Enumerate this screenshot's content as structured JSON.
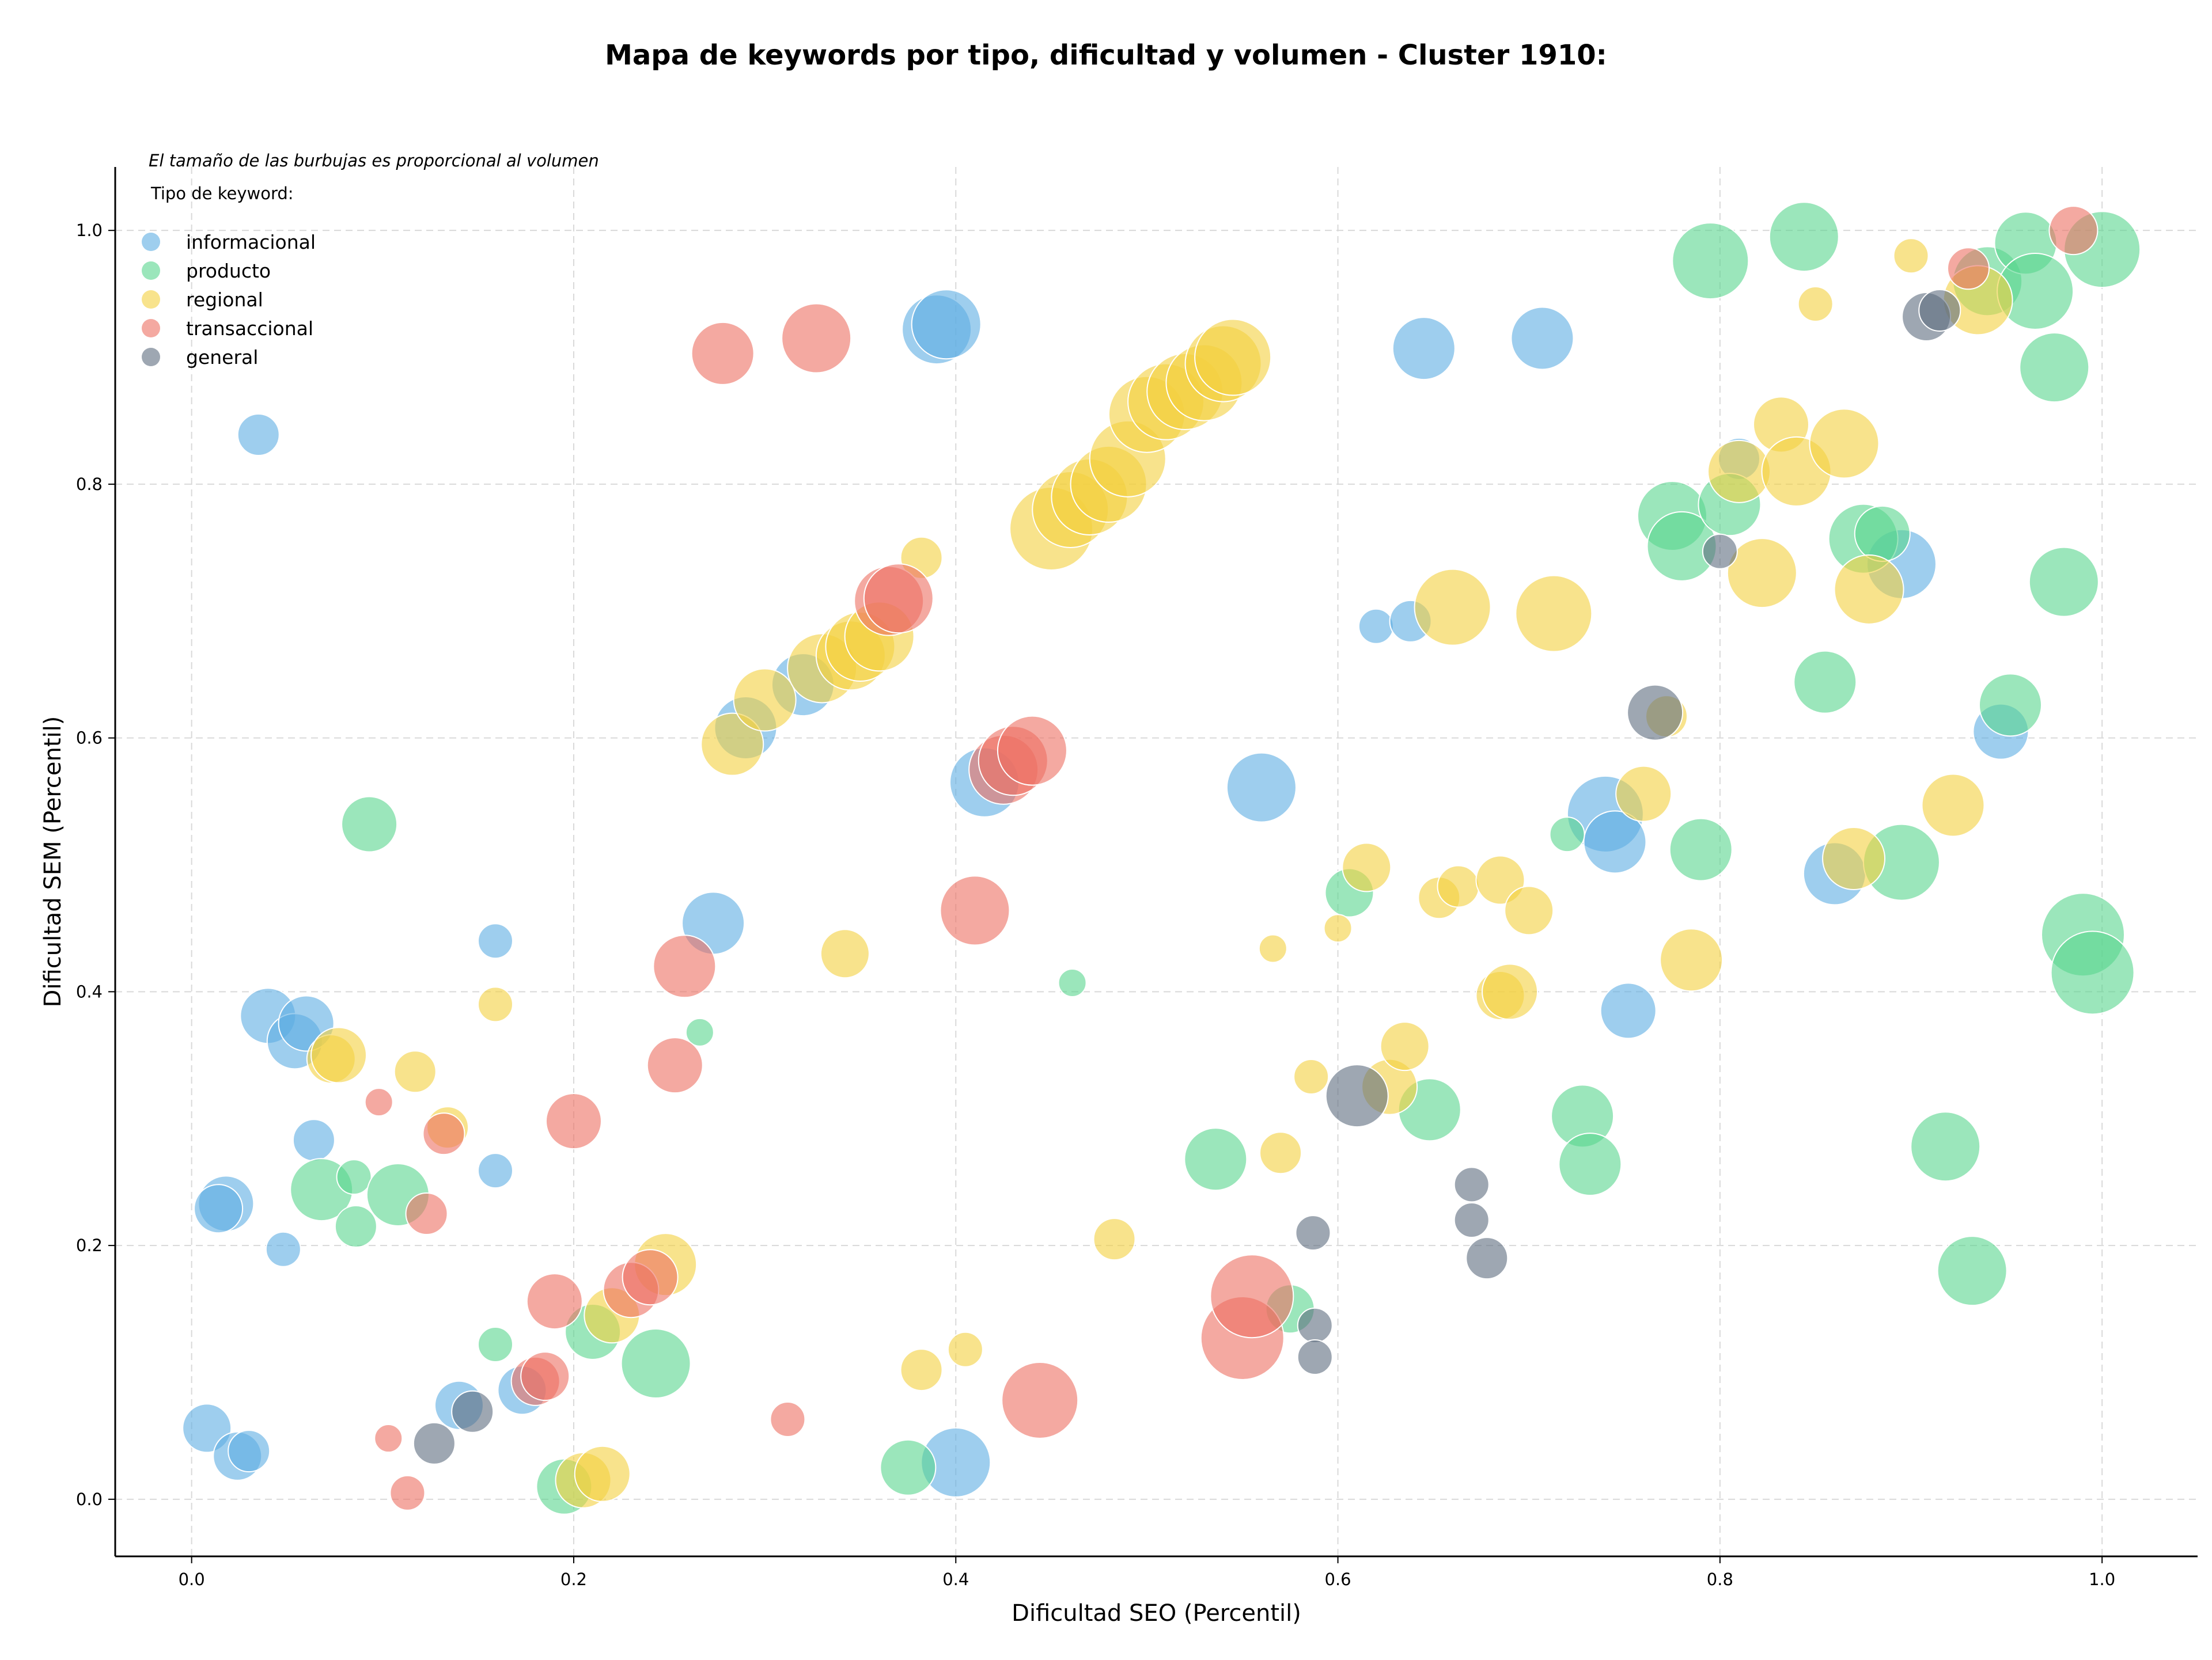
{
  "colors": {
    "informacional": "#5DADE2",
    "producto": "#58D68D",
    "regional": "#F4D03F",
    "transaccional": "#EC7063",
    "general": "#5D6D7E"
  },
  "chart_data": {
    "type": "scatter",
    "title": "Mapa de keywords por tipo, dificultad y volumen - Cluster 1910:",
    "xlabel": "Dificultad SEO (Percentil)",
    "ylabel": "Dificultad SEM (Percentil)",
    "xlim": [
      -0.04,
      1.05
    ],
    "ylim": [
      -0.045,
      1.05
    ],
    "xticks": [
      "0.0",
      "0.2",
      "0.4",
      "0.6",
      "0.8",
      "1.0"
    ],
    "yticks": [
      "0.0",
      "0.2",
      "0.4",
      "0.6",
      "0.8",
      "1.0"
    ],
    "grid": true,
    "note": "El tamaño de las burbujas es proporcional al volumen",
    "legend": {
      "title": "Tipo de keyword:",
      "placement": "top-left",
      "entries": [
        "informacional",
        "producto",
        "regional",
        "transaccional",
        "general"
      ]
    },
    "series": [
      {
        "name": "informacional",
        "points": [
          [
            0.008,
            0.056,
            7
          ],
          [
            0.018,
            0.233,
            8
          ],
          [
            0.014,
            0.229,
            7
          ],
          [
            0.024,
            0.034,
            7
          ],
          [
            0.03,
            0.038,
            6
          ],
          [
            0.035,
            0.839,
            6
          ],
          [
            0.04,
            0.381,
            8
          ],
          [
            0.054,
            0.361,
            8
          ],
          [
            0.06,
            0.375,
            8
          ],
          [
            0.048,
            0.197,
            5
          ],
          [
            0.064,
            0.283,
            6
          ],
          [
            0.159,
            0.44,
            5
          ],
          [
            0.159,
            0.259,
            5
          ],
          [
            0.14,
            0.074,
            7
          ],
          [
            0.173,
            0.086,
            7
          ],
          [
            0.273,
            0.454,
            9
          ],
          [
            0.29,
            0.608,
            9
          ],
          [
            0.32,
            0.642,
            9
          ],
          [
            0.39,
            0.922,
            10
          ],
          [
            0.395,
            0.926,
            10
          ],
          [
            0.4,
            0.029,
            10
          ],
          [
            0.415,
            0.565,
            10
          ],
          [
            0.56,
            0.561,
            10
          ],
          [
            0.62,
            0.688,
            5
          ],
          [
            0.638,
            0.692,
            6
          ],
          [
            0.645,
            0.907,
            9
          ],
          [
            0.707,
            0.915,
            9
          ],
          [
            0.74,
            0.54,
            11
          ],
          [
            0.745,
            0.518,
            9
          ],
          [
            0.752,
            0.385,
            8
          ],
          [
            0.81,
            0.82,
            6
          ],
          [
            0.86,
            0.493,
            9
          ],
          [
            0.895,
            0.737,
            10
          ],
          [
            0.947,
            0.605,
            8
          ]
        ]
      },
      {
        "name": "producto",
        "points": [
          [
            0.093,
            0.532,
            8
          ],
          [
            0.068,
            0.244,
            9
          ],
          [
            0.085,
            0.254,
            5
          ],
          [
            0.086,
            0.215,
            6
          ],
          [
            0.108,
            0.24,
            9
          ],
          [
            0.159,
            0.122,
            5
          ],
          [
            0.195,
            0.01,
            8
          ],
          [
            0.21,
            0.132,
            8
          ],
          [
            0.243,
            0.107,
            10
          ],
          [
            0.266,
            0.368,
            4
          ],
          [
            0.375,
            0.025,
            8
          ],
          [
            0.461,
            0.407,
            4
          ],
          [
            0.536,
            0.268,
            9
          ],
          [
            0.575,
            0.15,
            7
          ],
          [
            0.606,
            0.478,
            7
          ],
          [
            0.648,
            0.307,
            9
          ],
          [
            0.72,
            0.524,
            5
          ],
          [
            0.728,
            0.302,
            9
          ],
          [
            0.732,
            0.264,
            9
          ],
          [
            0.775,
            0.775,
            10
          ],
          [
            0.78,
            0.751,
            10
          ],
          [
            0.79,
            0.512,
            9
          ],
          [
            0.795,
            0.976,
            11
          ],
          [
            0.805,
            0.784,
            9
          ],
          [
            0.844,
            0.995,
            10
          ],
          [
            0.855,
            0.644,
            9
          ],
          [
            0.875,
            0.757,
            10
          ],
          [
            0.885,
            0.761,
            8
          ],
          [
            0.895,
            0.502,
            11
          ],
          [
            0.918,
            0.278,
            10
          ],
          [
            0.932,
            0.18,
            10
          ],
          [
            0.94,
            0.96,
            10
          ],
          [
            0.952,
            0.626,
            9
          ],
          [
            0.96,
            0.99,
            9
          ],
          [
            0.965,
            0.952,
            11
          ],
          [
            0.975,
            0.892,
            10
          ],
          [
            0.98,
            0.723,
            10
          ],
          [
            0.99,
            0.445,
            12
          ],
          [
            0.995,
            0.415,
            12
          ],
          [
            1.0,
            0.985,
            11
          ]
        ]
      },
      {
        "name": "regional",
        "points": [
          [
            0.073,
            0.347,
            7
          ],
          [
            0.077,
            0.35,
            8
          ],
          [
            0.117,
            0.337,
            6
          ],
          [
            0.134,
            0.293,
            6
          ],
          [
            0.159,
            0.39,
            5
          ],
          [
            0.205,
            0.015,
            8
          ],
          [
            0.215,
            0.02,
            8
          ],
          [
            0.22,
            0.145,
            8
          ],
          [
            0.248,
            0.185,
            9
          ],
          [
            0.283,
            0.595,
            9
          ],
          [
            0.3,
            0.63,
            9
          ],
          [
            0.33,
            0.655,
            10
          ],
          [
            0.342,
            0.43,
            7
          ],
          [
            0.345,
            0.665,
            10
          ],
          [
            0.35,
            0.672,
            10
          ],
          [
            0.36,
            0.68,
            10
          ],
          [
            0.382,
            0.742,
            6
          ],
          [
            0.382,
            0.102,
            6
          ],
          [
            0.405,
            0.118,
            5
          ],
          [
            0.45,
            0.765,
            12
          ],
          [
            0.46,
            0.78,
            11
          ],
          [
            0.47,
            0.79,
            11
          ],
          [
            0.48,
            0.8,
            11
          ],
          [
            0.483,
            0.205,
            6
          ],
          [
            0.49,
            0.82,
            11
          ],
          [
            0.5,
            0.855,
            11
          ],
          [
            0.51,
            0.865,
            11
          ],
          [
            0.52,
            0.873,
            11
          ],
          [
            0.53,
            0.88,
            11
          ],
          [
            0.54,
            0.895,
            11
          ],
          [
            0.545,
            0.9,
            11
          ],
          [
            0.566,
            0.434,
            4
          ],
          [
            0.57,
            0.273,
            6
          ],
          [
            0.586,
            0.333,
            5
          ],
          [
            0.6,
            0.45,
            4
          ],
          [
            0.615,
            0.498,
            7
          ],
          [
            0.627,
            0.325,
            8
          ],
          [
            0.635,
            0.357,
            7
          ],
          [
            0.653,
            0.474,
            6
          ],
          [
            0.66,
            0.703,
            11
          ],
          [
            0.663,
            0.483,
            6
          ],
          [
            0.685,
            0.488,
            7
          ],
          [
            0.685,
            0.397,
            7
          ],
          [
            0.69,
            0.4,
            8
          ],
          [
            0.7,
            0.464,
            7
          ],
          [
            0.713,
            0.698,
            11
          ],
          [
            0.76,
            0.556,
            8
          ],
          [
            0.772,
            0.617,
            6
          ],
          [
            0.785,
            0.425,
            9
          ],
          [
            0.81,
            0.81,
            9
          ],
          [
            0.822,
            0.73,
            10
          ],
          [
            0.832,
            0.847,
            8
          ],
          [
            0.84,
            0.81,
            10
          ],
          [
            0.85,
            0.942,
            5
          ],
          [
            0.865,
            0.832,
            10
          ],
          [
            0.87,
            0.505,
            9
          ],
          [
            0.878,
            0.717,
            10
          ],
          [
            0.9,
            0.98,
            5
          ],
          [
            0.922,
            0.547,
            9
          ],
          [
            0.935,
            0.945,
            10
          ]
        ]
      },
      {
        "name": "transaccional",
        "points": [
          [
            0.098,
            0.313,
            4
          ],
          [
            0.103,
            0.048,
            4
          ],
          [
            0.113,
            0.005,
            5
          ],
          [
            0.123,
            0.225,
            6
          ],
          [
            0.132,
            0.288,
            6
          ],
          [
            0.2,
            0.298,
            8
          ],
          [
            0.19,
            0.156,
            8
          ],
          [
            0.18,
            0.093,
            7
          ],
          [
            0.185,
            0.097,
            7
          ],
          [
            0.23,
            0.165,
            8
          ],
          [
            0.24,
            0.175,
            8
          ],
          [
            0.253,
            0.342,
            8
          ],
          [
            0.258,
            0.42,
            9
          ],
          [
            0.278,
            0.903,
            9
          ],
          [
            0.312,
            0.063,
            5
          ],
          [
            0.327,
            0.915,
            10
          ],
          [
            0.365,
            0.708,
            10
          ],
          [
            0.37,
            0.71,
            10
          ],
          [
            0.41,
            0.464,
            10
          ],
          [
            0.425,
            0.575,
            10
          ],
          [
            0.43,
            0.582,
            10
          ],
          [
            0.44,
            0.59,
            10
          ],
          [
            0.444,
            0.078,
            11
          ],
          [
            0.55,
            0.127,
            12
          ],
          [
            0.555,
            0.16,
            12
          ],
          [
            0.93,
            0.97,
            6
          ],
          [
            0.985,
            1.0,
            7
          ]
        ]
      },
      {
        "name": "general",
        "points": [
          [
            0.127,
            0.044,
            6
          ],
          [
            0.147,
            0.069,
            6
          ],
          [
            0.587,
            0.21,
            5
          ],
          [
            0.588,
            0.137,
            5
          ],
          [
            0.588,
            0.112,
            5
          ],
          [
            0.61,
            0.318,
            9
          ],
          [
            0.67,
            0.248,
            5
          ],
          [
            0.67,
            0.22,
            5
          ],
          [
            0.678,
            0.19,
            6
          ],
          [
            0.766,
            0.62,
            8
          ],
          [
            0.8,
            0.747,
            5
          ],
          [
            0.908,
            0.932,
            7
          ],
          [
            0.915,
            0.937,
            6
          ]
        ]
      }
    ]
  }
}
